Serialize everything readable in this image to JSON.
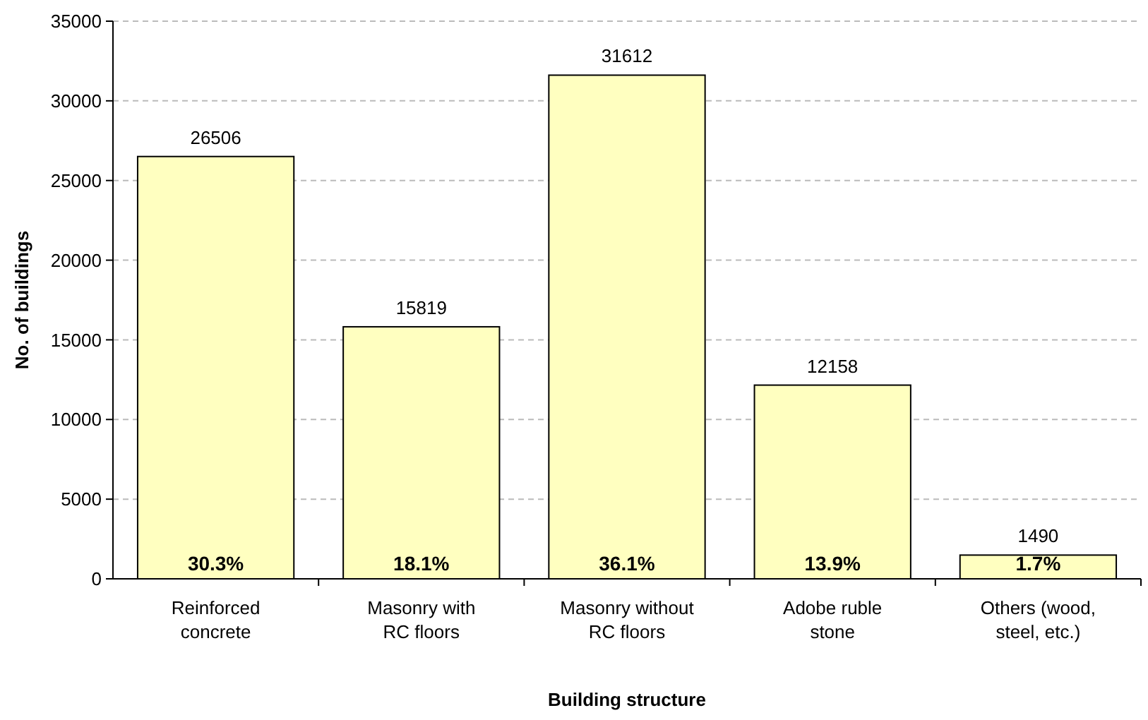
{
  "chart_data": {
    "type": "bar",
    "xlabel": "Building structure",
    "ylabel": "No. of buildings",
    "categories": [
      "Reinforced\nconcrete",
      "Masonry with\nRC floors",
      "Masonry without\nRC floors",
      "Adobe ruble\nstone",
      "Others (wood,\nsteel, etc.)"
    ],
    "values": [
      26506,
      15819,
      31612,
      12158,
      1490
    ],
    "color": "#ffffc0",
    "ylim": [
      0,
      35000
    ],
    "yticks": [
      0,
      5000,
      10000,
      15000,
      20000,
      25000,
      30000,
      35000
    ],
    "grid": "y",
    "data_labels": true,
    "annotations": [
      {
        "text": "30.3%",
        "x": "Reinforced\nconcrete",
        "y": 0
      },
      {
        "text": "18.1%",
        "x": "Masonry with\nRC floors",
        "y": 0
      },
      {
        "text": "36.1%",
        "x": "Masonry without\nRC floors",
        "y": 0
      },
      {
        "text": "13.9%",
        "x": "Adobe ruble\nstone",
        "y": 0
      },
      {
        "text": "1.7%",
        "x": "Others (wood,\nsteel, etc.)",
        "y": 0
      }
    ]
  }
}
